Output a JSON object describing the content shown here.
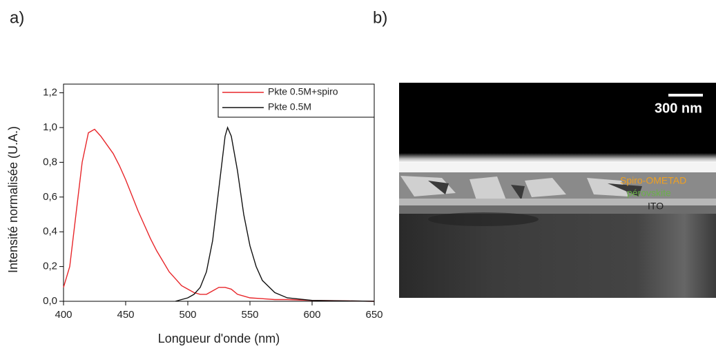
{
  "panels": [
    "a)",
    "b)"
  ],
  "chart_data": {
    "type": "line",
    "xlabel": "Longueur d'onde (nm)",
    "ylabel": "Intensité normalisée (U.A.)",
    "xlim": [
      400,
      650
    ],
    "xticks": [
      400,
      450,
      500,
      550,
      600,
      650
    ],
    "ylim": [
      0,
      1.25
    ],
    "yticks": [
      {
        "value": 0,
        "label": "0,0"
      },
      {
        "value": 0.2,
        "label": "0,2"
      },
      {
        "value": 0.4,
        "label": "0,4"
      },
      {
        "value": 0.6,
        "label": "0,6"
      },
      {
        "value": 0.8,
        "label": "0,8"
      },
      {
        "value": 1.0,
        "label": "1,0"
      },
      {
        "value": 1.2,
        "label": "1,2"
      }
    ],
    "series": [
      {
        "name": "Pkte 0.5M+spiro",
        "color": "#e8262a",
        "x": [
          400,
          405,
          410,
          415,
          420,
          425,
          430,
          435,
          440,
          445,
          450,
          455,
          460,
          465,
          470,
          475,
          480,
          485,
          490,
          495,
          500,
          505,
          510,
          515,
          520,
          525,
          530,
          535,
          540,
          545,
          550,
          560,
          570,
          580,
          600,
          625,
          650
        ],
        "values": [
          0.08,
          0.2,
          0.5,
          0.8,
          0.97,
          0.99,
          0.95,
          0.9,
          0.85,
          0.78,
          0.7,
          0.61,
          0.52,
          0.44,
          0.36,
          0.29,
          0.23,
          0.17,
          0.13,
          0.09,
          0.07,
          0.05,
          0.04,
          0.04,
          0.06,
          0.08,
          0.08,
          0.07,
          0.04,
          0.03,
          0.02,
          0.015,
          0.01,
          0.01,
          0.005,
          0.003,
          0
        ]
      },
      {
        "name": "Pkte 0.5M",
        "color": "#111111",
        "x": [
          490,
          500,
          505,
          510,
          515,
          520,
          525,
          530,
          532,
          535,
          540,
          545,
          550,
          555,
          560,
          570,
          580,
          600,
          650
        ],
        "values": [
          0,
          0.02,
          0.04,
          0.08,
          0.17,
          0.35,
          0.65,
          0.95,
          1.0,
          0.95,
          0.75,
          0.5,
          0.32,
          0.2,
          0.12,
          0.05,
          0.02,
          0.005,
          0
        ]
      }
    ]
  },
  "image": {
    "scale_bar": "300 nm",
    "layers": [
      "Spiro-OMETAD",
      "pérovskite",
      "ITO"
    ]
  }
}
